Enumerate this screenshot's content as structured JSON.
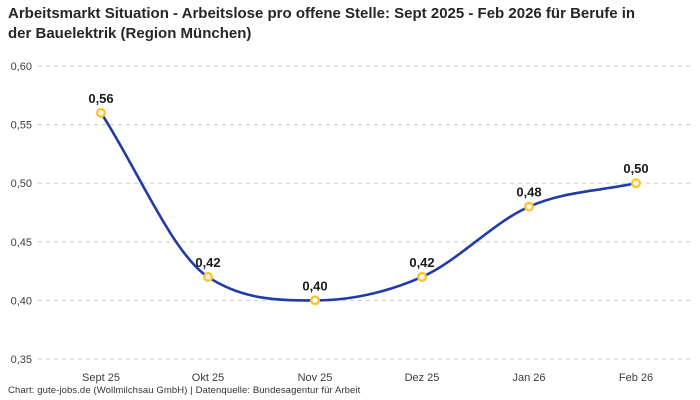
{
  "title": "Arbeitsmarkt Situation - Arbeitslose pro offene Stelle: Sept 2025 - Feb 2026 für Berufe in der Bauelektrik (Region München)",
  "footer": {
    "text": "Chart: gute-jobs.de (Wollmilchsau GmbH) | Datenquelle: Bundesagentur für Arbeit"
  },
  "chart_data": {
    "type": "line",
    "title": "Arbeitsmarkt Situation - Arbeitslose pro offene Stelle: Sept 2025 - Feb 2026 für Berufe in der Bauelektrik (Region München)",
    "categories": [
      "Sept 25",
      "Okt 25",
      "Nov 25",
      "Dez 25",
      "Jan 26",
      "Feb 26"
    ],
    "values": [
      0.56,
      0.42,
      0.4,
      0.42,
      0.48,
      0.5
    ],
    "value_labels": [
      "0,56",
      "0,42",
      "0,40",
      "0,42",
      "0,48",
      "0,50"
    ],
    "y_tick_values": [
      0.6,
      0.55,
      0.5,
      0.45,
      0.4,
      0.35
    ],
    "y_tick_labels": [
      "0,60",
      "0,55",
      "0,50",
      "0,45",
      "0,40",
      "0,35"
    ],
    "ylim": [
      0.35,
      0.6
    ],
    "xlabel": "",
    "ylabel": "",
    "grid": "horizontal-dashed",
    "legend": "none",
    "line_style": "smooth-spline",
    "colors": {
      "line": "#1f3ca6",
      "marker_stroke": "#ffc42d",
      "marker_fill": "#ffffff",
      "grid": "#cbcbcb",
      "axis_text": "#3c3c3c",
      "value_label": "#1a1a1a",
      "title": "#262626",
      "background": "#ffffff"
    }
  }
}
